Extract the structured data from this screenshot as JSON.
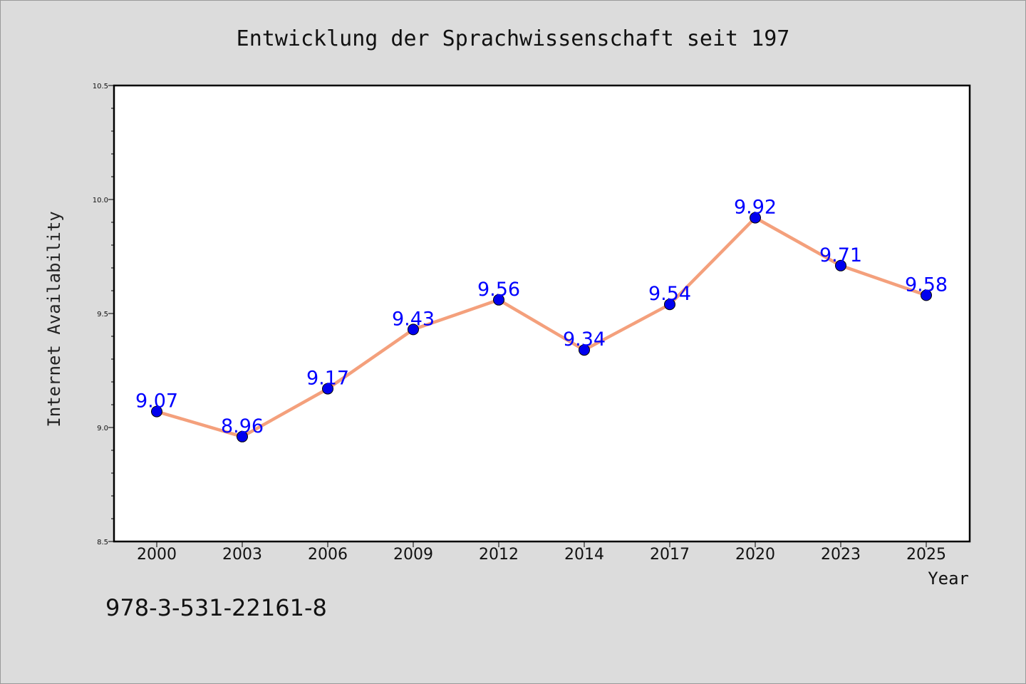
{
  "chart_data": {
    "type": "line",
    "title": "Entwicklung der Sprachwissenschaft seit 197",
    "xlabel": "Year",
    "ylabel": "Internet Availability",
    "categories": [
      "2000",
      "2003",
      "2006",
      "2009",
      "2012",
      "2014",
      "2017",
      "2020",
      "2023",
      "2025"
    ],
    "series": [
      {
        "values": [
          9.07,
          8.96,
          9.17,
          9.43,
          9.56,
          9.34,
          9.54,
          9.92,
          9.71,
          9.58
        ]
      }
    ],
    "data_labels": [
      "9.07",
      "8.96",
      "9.17",
      "9.43",
      "9.56",
      "9.34",
      "9.54",
      "9.92",
      "9.71",
      "9.58"
    ],
    "ylim": [
      8.5,
      10.5
    ],
    "yticks": [
      "8.5",
      "9.0",
      "9.5",
      "10.0",
      "10.5"
    ],
    "grid": false,
    "colors": {
      "line": "#f4a07c",
      "marker": "#0000ee",
      "label": "#0000ff"
    }
  },
  "footer": {
    "isbn": "978-3-531-22161-8"
  }
}
